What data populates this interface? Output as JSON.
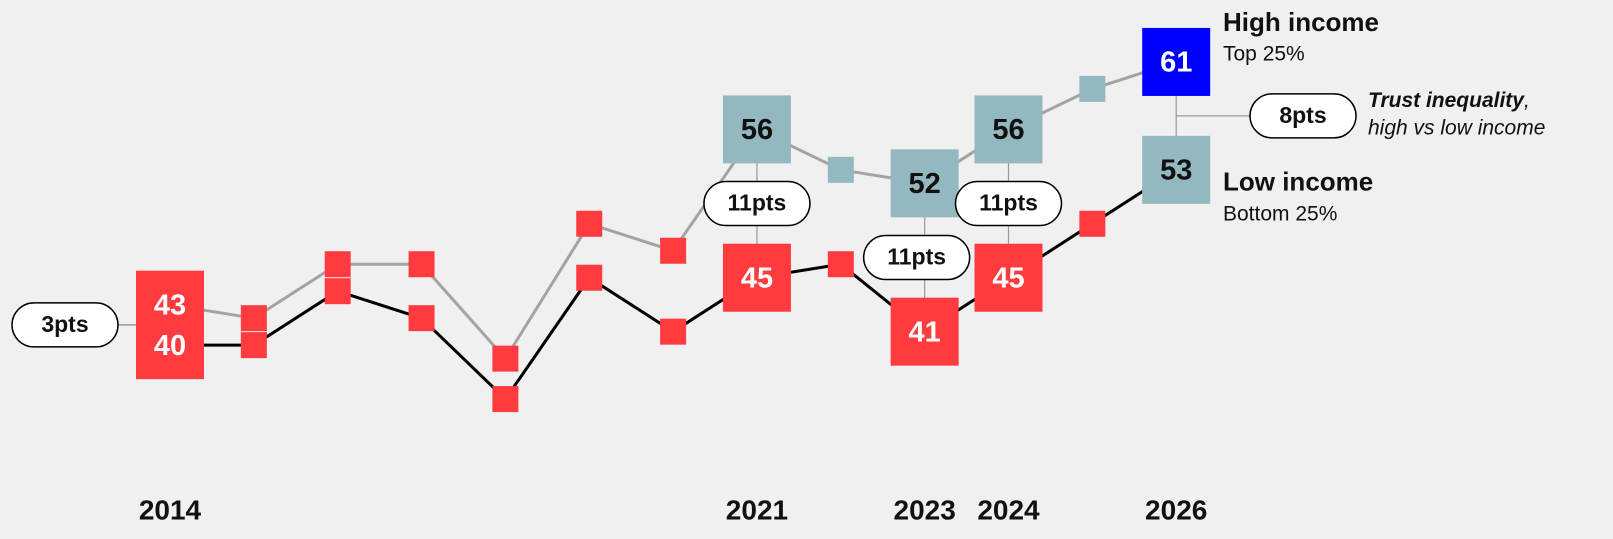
{
  "chart_data": {
    "type": "line",
    "categories": [
      "2014",
      null,
      null,
      null,
      null,
      null,
      null,
      "2021",
      null,
      "2023",
      "2024",
      null,
      "2026"
    ],
    "ylim": [
      30,
      65
    ],
    "series": [
      {
        "name": "High income",
        "subtitle": "Top 25%",
        "color": "#a3a3a3",
        "values": [
          43,
          42,
          46,
          46,
          39,
          49,
          47,
          56,
          53,
          52,
          56,
          59,
          61
        ],
        "colors": [
          "#ff3b3f",
          "#ff3b3f",
          "#ff3b3f",
          "#ff3b3f",
          "#ff3b3f",
          "#ff3b3f",
          "#ff3b3f",
          "#93b8bf",
          "#93b8bf",
          "#93b8bf",
          "#93b8bf",
          "#93b8bf",
          "#0000ff"
        ]
      },
      {
        "name": "Low income",
        "subtitle": "Bottom 25%",
        "color": "#000000",
        "values": [
          40,
          40,
          44,
          42,
          36,
          45,
          41,
          45,
          46,
          41,
          45,
          49,
          53
        ],
        "colors": [
          "#ff3b3f",
          "#ff3b3f",
          "#ff3b3f",
          "#ff3b3f",
          "#ff3b3f",
          "#ff3b3f",
          "#ff3b3f",
          "#ff3b3f",
          "#ff3b3f",
          "#ff3b3f",
          "#ff3b3f",
          "#ff3b3f",
          "#93b8bf"
        ]
      }
    ],
    "gap_annotations": [
      {
        "category": "2014",
        "label": "3pts"
      },
      {
        "category": "2021",
        "label": "11pts"
      },
      {
        "category": "2023",
        "label": "11pts"
      },
      {
        "category": "2024",
        "label": "11pts"
      },
      {
        "category": "2026",
        "label": "8pts"
      }
    ],
    "note": {
      "emphasis": "Trust inequality",
      "separator": ",",
      "text": "high vs low income"
    }
  }
}
